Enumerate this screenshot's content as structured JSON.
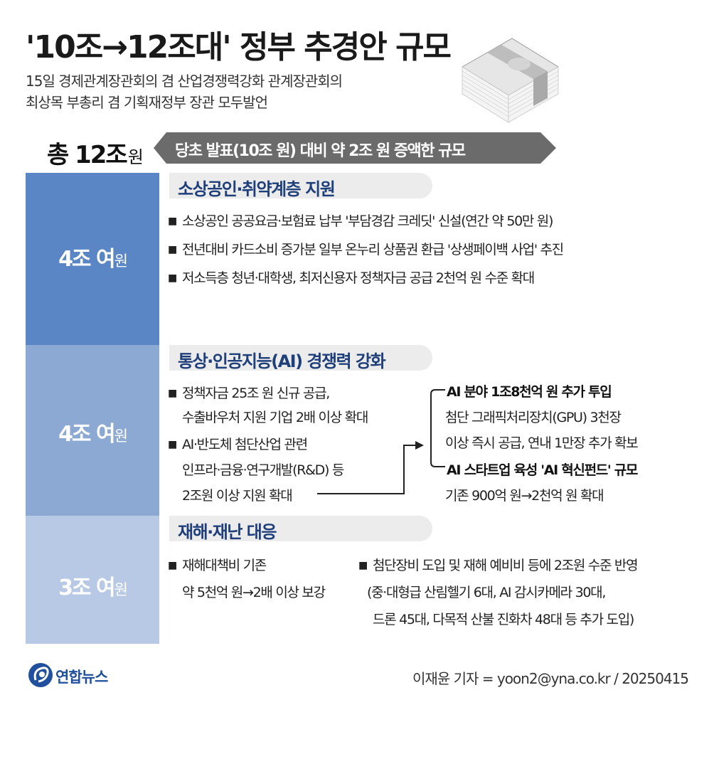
{
  "header": {
    "title": "'10조→12조대' 정부 추경안 규모",
    "subtitle_lines": [
      "15일 경제관계장관회의 겸 산업경쟁력강화 관계장관회의",
      "최상목 부총리 겸 기획재정부 장관 모두발언"
    ]
  },
  "total": {
    "label": "총 12조",
    "unit": "원"
  },
  "callout": {
    "text": "당초 발표(10조 원) 대비 약 2조 원 증액한 규모"
  },
  "sections": [
    {
      "amount": "4조 여",
      "unit": "원",
      "color": "#5a86c5",
      "title": "소상공인·취약계층 지원",
      "bullets": [
        "소상공인 공공요금·보험료 납부 '부담경감 크레딧' 신설(연간 약 50만 원)",
        "전년대비 카드소비 증가분 일부 온누리 상품권 환급 '상생페이백 사업' 추진",
        "저소득층 청년·대학생, 최저신용자 정책자금 공급 2천억 원 수준 확대"
      ]
    },
    {
      "amount": "4조 여",
      "unit": "원",
      "color": "#8ba9d3",
      "title": "통상·인공지능(AI) 경쟁력 강화",
      "left_bullets": [
        {
          "lines": [
            "정책자금 25조 원 신규 공급,",
            "수출바우처 지원 기업 2배 이상 확대"
          ]
        },
        {
          "lines": [
            "AI·반도체 첨단산업 관련",
            "인프라·금융·연구개발(R&D) 등",
            "2조원 이상 지원 확대"
          ]
        }
      ],
      "right_items": [
        {
          "heading": "AI 분야 1조8천억 원 추가 투입",
          "lines": [
            "첨단 그래픽처리장치(GPU) 3천장",
            "이상 즉시 공급, 연내 1만장 추가 확보"
          ]
        },
        {
          "heading": "AI 스타트업 육성 'AI 혁신펀드' 규모",
          "lines": [
            "기존 900억 원→2천억 원 확대"
          ]
        }
      ]
    },
    {
      "amount": "3조 여",
      "unit": "원",
      "color": "#b7c9e4",
      "title": "재해·재난 대응",
      "left_bullet": {
        "lines": [
          "재해대책비 기존",
          "약 5천억 원→2배 이상 보강"
        ]
      },
      "right_bullet": {
        "lines": [
          "첨단장비 도입 및 재해 예비비 등에 2조원 수준 반영",
          "(중·대형급 산림헬기 6대, AI 감시카메라 30대,",
          "드론 45대, 다목적 산불 진화차 48대 등 추가 도입)"
        ]
      }
    }
  ],
  "footer": {
    "logo_text": "연합뉴스",
    "byline": "이재윤 기자 = yoon2@yna.co.kr / 20250415"
  },
  "colors": {
    "callout_bg": "#6b6b6b",
    "section_title": "#1e3f7a",
    "logo_blue": "#1f4f9d"
  },
  "icons": {
    "bullet": "square-bullet",
    "illustration": "money-stack-icon",
    "logo": "yonhap-logo-icon"
  }
}
